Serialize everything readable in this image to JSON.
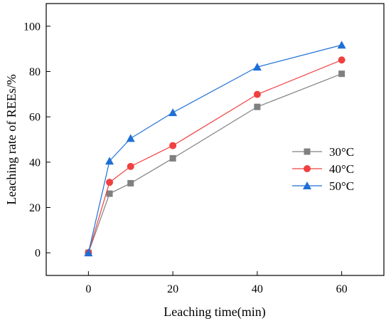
{
  "chart_data": {
    "type": "line",
    "title": "",
    "xlabel": "Leaching time(min)",
    "ylabel": "Leaching rate of REEs/%",
    "xlim": [
      -10,
      70
    ],
    "ylim": [
      -10,
      110
    ],
    "xticks": [
      0,
      20,
      40,
      60
    ],
    "yticks": [
      0,
      20,
      40,
      60,
      80,
      100
    ],
    "grid": false,
    "legend_position": "right",
    "x": [
      0,
      5,
      10,
      20,
      40,
      60
    ],
    "series": [
      {
        "name": "30°C",
        "color": "#808080",
        "marker": "square",
        "values": [
          0,
          26.1,
          30.7,
          41.7,
          64.4,
          79.0
        ]
      },
      {
        "name": "40°C",
        "color": "#f04040",
        "marker": "circle",
        "values": [
          0,
          31.1,
          38.1,
          47.3,
          69.9,
          85.1
        ]
      },
      {
        "name": "50°C",
        "color": "#1f6fd6",
        "marker": "triangle",
        "values": [
          0,
          40.5,
          50.5,
          61.9,
          82.0,
          91.7
        ]
      }
    ]
  }
}
